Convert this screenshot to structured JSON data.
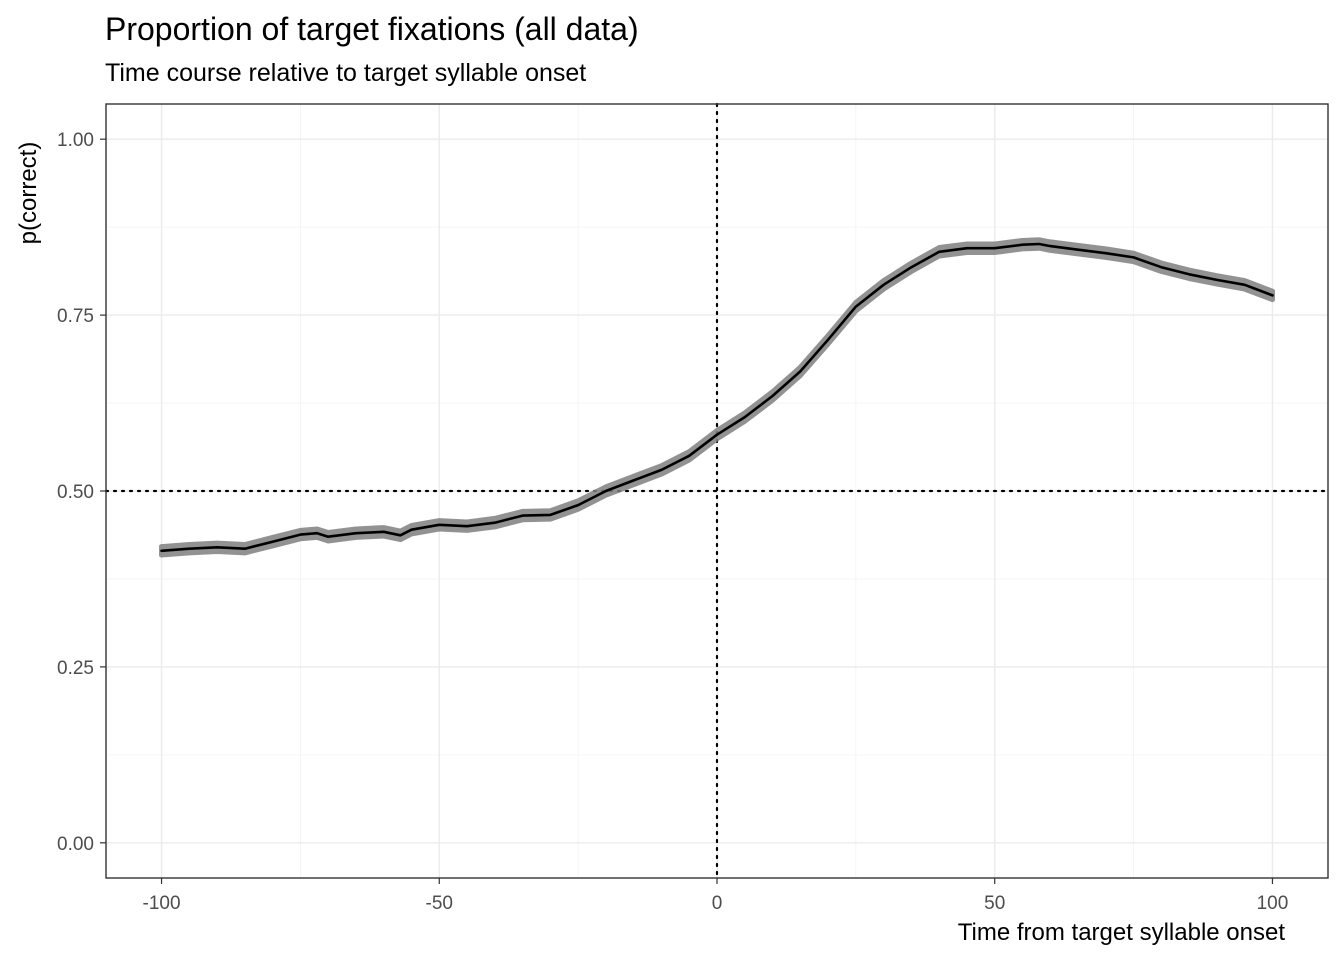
{
  "chart_data": {
    "type": "line",
    "title": "Proportion of target fixations (all data)",
    "subtitle": "Time course relative to target syllable onset",
    "xlabel": "Time from target syllable onset",
    "ylabel": "p(correct)",
    "xlim": [
      -110,
      110
    ],
    "ylim": [
      -0.05,
      1.05
    ],
    "x_ticks": [
      -100,
      -50,
      0,
      50,
      100
    ],
    "x_tick_labels": [
      "-100",
      "-50",
      "0",
      "50",
      "100"
    ],
    "y_ticks": [
      0,
      0.25,
      0.5,
      0.75,
      1.0
    ],
    "y_tick_labels": [
      "0.00",
      "0.25",
      "0.50",
      "0.75",
      "1.00"
    ],
    "grid": true,
    "reference_lines": {
      "vertical_x": 0,
      "horizontal_y": 0.5,
      "style": "dotted"
    },
    "series": [
      {
        "color": "#000000",
        "ribbon_color": "#808080",
        "x": [
          -100,
          -95,
          -90,
          -85,
          -80,
          -75,
          -72,
          -70,
          -65,
          -60,
          -57,
          -55,
          -50,
          -45,
          -40,
          -35,
          -30,
          -25,
          -20,
          -15,
          -10,
          -5,
          0,
          5,
          10,
          15,
          20,
          25,
          30,
          35,
          40,
          45,
          50,
          55,
          58,
          60,
          65,
          70,
          75,
          80,
          85,
          90,
          95,
          100
        ],
        "values": [
          0.415,
          0.418,
          0.42,
          0.418,
          0.428,
          0.438,
          0.44,
          0.435,
          0.44,
          0.442,
          0.437,
          0.445,
          0.452,
          0.45,
          0.455,
          0.465,
          0.466,
          0.48,
          0.5,
          0.515,
          0.53,
          0.55,
          0.58,
          0.605,
          0.635,
          0.67,
          0.715,
          0.762,
          0.793,
          0.818,
          0.84,
          0.845,
          0.845,
          0.85,
          0.851,
          0.848,
          0.843,
          0.838,
          0.832,
          0.818,
          0.808,
          0.8,
          0.793,
          0.778
        ],
        "ribbon_halfwidth": 0.006
      }
    ]
  }
}
